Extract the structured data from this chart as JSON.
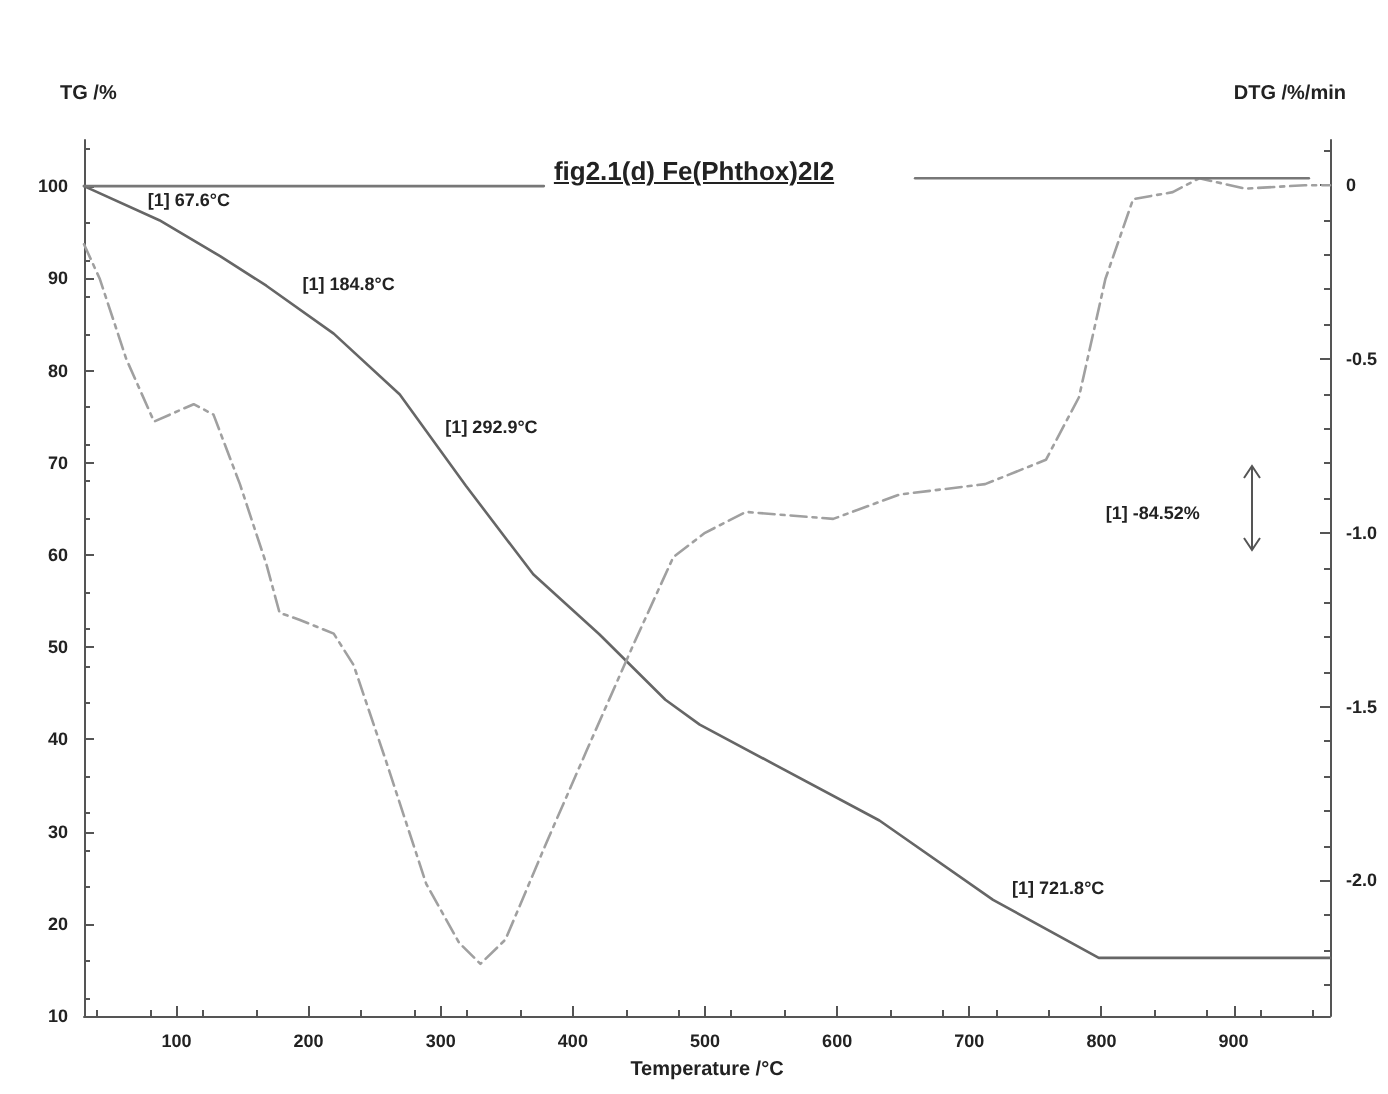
{
  "chart_data": {
    "type": "line",
    "title": "fig2.1(d) Fe(Phthox)2I2",
    "xlabel": "Temperature /°C",
    "ylabel": "TG /%",
    "y2label": "DTG /%/min",
    "xlim": [
      30,
      973
    ],
    "xticks": [
      100,
      200,
      300,
      400,
      500,
      600,
      700,
      800,
      900
    ],
    "ylim": [
      10,
      105
    ],
    "yticks": [
      10,
      20,
      30,
      40,
      50,
      60,
      70,
      80,
      90,
      100
    ],
    "y2lim": [
      -2.39,
      0.13
    ],
    "y2ticks": [
      0,
      -0.5,
      {
        "value": -1,
        "label": "-1.0"
      },
      -1.5,
      {
        "value": -2,
        "label": "-2.0"
      }
    ],
    "grid": false,
    "marker": "none",
    "series": [
      {
        "color": "#666666",
        "line_style": "solid",
        "x": [
          30,
          87,
          133,
          168,
          219,
          269,
          319,
          370,
          420,
          470,
          496,
          632,
          718,
          798,
          973
        ],
        "values": [
          100,
          96.3,
          92.4,
          89.2,
          84,
          77.4,
          67.5,
          57.9,
          51.4,
          44.3,
          41.6,
          31.2,
          22.6,
          16.3,
          16.3
        ]
      },
      {
        "color": "#a0a0a0",
        "line_style": "dashed",
        "axis": "y2",
        "x": [
          30,
          42,
          62,
          83,
          113,
          128,
          148,
          168,
          178,
          193,
          219,
          234,
          258,
          289,
          314,
          330,
          349,
          379,
          410,
          446,
          476,
          500,
          531,
          597,
          647,
          712,
          758,
          783,
          803,
          824,
          854,
          874,
          909,
          954,
          973
        ],
        "values": [
          -0.17,
          -0.27,
          -0.5,
          -0.68,
          -0.63,
          -0.66,
          -0.86,
          -1.09,
          -1.23,
          -1.25,
          -1.29,
          -1.38,
          -1.65,
          -2.01,
          -2.18,
          -2.24,
          -2.17,
          -1.9,
          -1.63,
          -1.32,
          -1.07,
          -1,
          -0.94,
          -0.96,
          -0.89,
          -0.86,
          -0.79,
          -0.61,
          -0.27,
          -0.04,
          -0.02,
          0.02,
          -0.01,
          0,
          0
        ]
      },
      {
        "color": "#777777",
        "line_style": "solid",
        "x": [
          30,
          378
        ],
        "values": [
          100,
          100
        ]
      },
      {
        "color": "#777777",
        "line_style": "solid",
        "axis": "y2",
        "x": [
          659,
          957
        ],
        "values": [
          0.02,
          0.02
        ]
      }
    ],
    "annotations": [
      {
        "text": "[1] 67.6°C",
        "x": 67.6,
        "y": 96.6
      },
      {
        "text": "[1] 184.8°C",
        "x": 184.8,
        "y": 87.5
      },
      {
        "text": "[1] 292.9°C",
        "x": 292.9,
        "y": 72
      },
      {
        "text": "[1] 721.8°C",
        "x": 721.8,
        "y": 22
      },
      "[1] -84.52%"
    ]
  }
}
